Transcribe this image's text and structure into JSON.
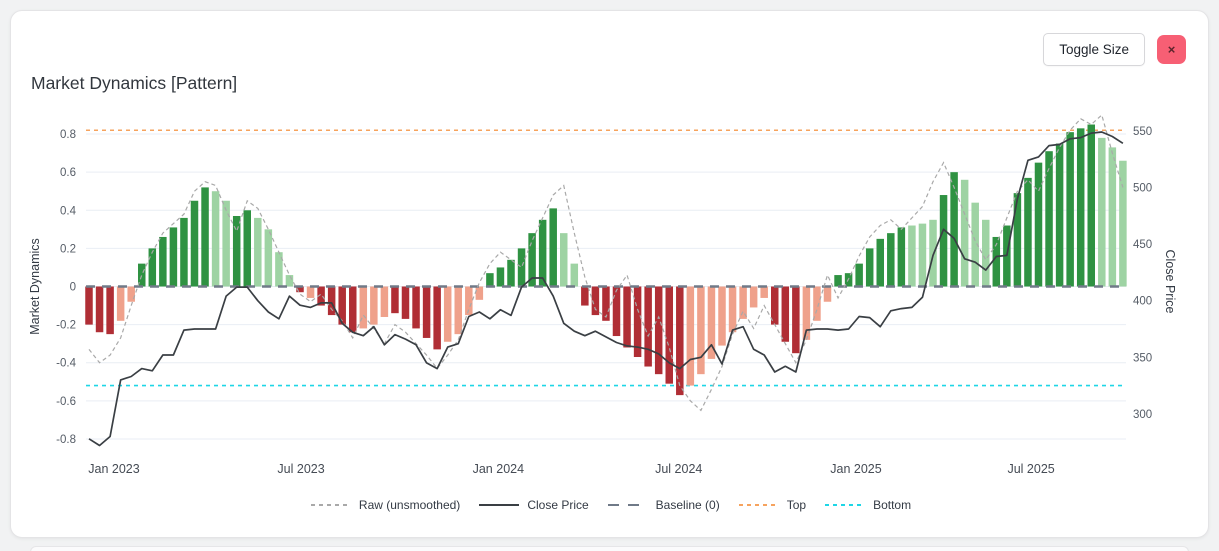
{
  "header": {
    "title": "Market Dynamics [Pattern]",
    "toggle_button": "Toggle Size",
    "close_button": "×"
  },
  "chart_data": {
    "type": "bar+line combo (pattern bars with dual-axis close price overlay)",
    "title": "Market Dynamics [Pattern]",
    "left_axis": {
      "title": "Market Dynamics",
      "ticks": [
        "0.8",
        "0.6",
        "0.4",
        "0.2",
        "0",
        "-0.2",
        "-0.4",
        "-0.6",
        "-0.8"
      ],
      "tick_values": [
        0.8,
        0.6,
        0.4,
        0.2,
        0,
        -0.2,
        -0.4,
        -0.6,
        -0.8
      ],
      "range": [
        -0.9,
        0.9
      ],
      "grid": true
    },
    "right_axis": {
      "title": "Close Price",
      "ticks": [
        "550",
        "500",
        "450",
        "400",
        "350",
        "300"
      ],
      "tick_values": [
        550,
        500,
        450,
        400,
        350,
        300
      ],
      "range": [
        261,
        564
      ]
    },
    "x_ticks": [
      {
        "label": "Jan 2023",
        "i": 2.37
      },
      {
        "label": "Jul 2023",
        "i": 20.1
      },
      {
        "label": "Jan 2024",
        "i": 38.8
      },
      {
        "label": "Jul 2024",
        "i": 55.9
      },
      {
        "label": "Jan 2025",
        "i": 72.7
      },
      {
        "label": "Jul 2025",
        "i": 89.3
      }
    ],
    "thresholds": {
      "top": 0.82,
      "bottom": -0.52
    },
    "legend": [
      {
        "label": "Raw (unsmoothed)",
        "style": "dashed",
        "color": "#a9a9a9"
      },
      {
        "label": "Close Price",
        "style": "solid",
        "color": "#3a3f44"
      },
      {
        "label": "Baseline (0)",
        "style": "longdash",
        "color": "#707a88"
      },
      {
        "label": "Top",
        "style": "dashed",
        "color": "#f6a35e"
      },
      {
        "label": "Bottom",
        "style": "dashed",
        "color": "#1ed6e6"
      }
    ],
    "colors": {
      "bar_pos_strong": "#2f9242",
      "bar_pos_soft": "#9ed3a3",
      "bar_neg_strong": "#b02e35",
      "bar_neg_soft": "#efa18b",
      "close_line": "#3a3f44",
      "raw_line": "#a9a9a9",
      "baseline": "#707a88",
      "top_line": "#f6a35e",
      "bottom_line": "#1ed6e6",
      "grid": "#e9eef4",
      "tick_text": "#555c66",
      "axis_title": "#333a44"
    },
    "pattern": [
      -0.2,
      -0.24,
      -0.25,
      -0.18,
      -0.08,
      0.12,
      0.2,
      0.26,
      0.31,
      0.36,
      0.45,
      0.52,
      0.5,
      0.45,
      0.37,
      0.4,
      0.36,
      0.3,
      0.18,
      0.06,
      -0.03,
      -0.06,
      -0.1,
      -0.15,
      -0.2,
      -0.24,
      -0.22,
      -0.2,
      -0.16,
      -0.14,
      -0.17,
      -0.22,
      -0.27,
      -0.33,
      -0.29,
      -0.25,
      -0.15,
      -0.07,
      0.07,
      0.1,
      0.14,
      0.2,
      0.28,
      0.35,
      0.41,
      0.28,
      0.12,
      -0.1,
      -0.15,
      -0.18,
      -0.26,
      -0.32,
      -0.37,
      -0.42,
      -0.46,
      -0.51,
      -0.57,
      -0.52,
      -0.46,
      -0.38,
      -0.31,
      -0.24,
      -0.17,
      -0.11,
      -0.06,
      -0.2,
      -0.29,
      -0.35,
      -0.28,
      -0.18,
      -0.08,
      0.06,
      0.07,
      0.12,
      0.2,
      0.25,
      0.28,
      0.31,
      0.32,
      0.33,
      0.35,
      0.48,
      0.6,
      0.56,
      0.44,
      0.35,
      0.26,
      0.32,
      0.49,
      0.57,
      0.65,
      0.71,
      0.75,
      0.81,
      0.83,
      0.85,
      0.78,
      0.73,
      0.66
    ],
    "soft": [
      0,
      0,
      0,
      1,
      1,
      0,
      0,
      0,
      0,
      0,
      0,
      0,
      1,
      1,
      0,
      0,
      1,
      1,
      1,
      1,
      0,
      1,
      0,
      0,
      0,
      0,
      1,
      1,
      1,
      0,
      0,
      0,
      0,
      0,
      1,
      1,
      1,
      1,
      0,
      0,
      0,
      0,
      0,
      0,
      0,
      1,
      1,
      0,
      0,
      0,
      0,
      0,
      0,
      0,
      0,
      0,
      0,
      1,
      1,
      1,
      1,
      1,
      1,
      1,
      1,
      0,
      0,
      0,
      1,
      1,
      1,
      0,
      0,
      0,
      0,
      0,
      0,
      0,
      1,
      1,
      1,
      0,
      0,
      1,
      1,
      1,
      0,
      0,
      0,
      0,
      0,
      0,
      0,
      0,
      0,
      0,
      1,
      1,
      1
    ],
    "close": [
      278,
      272,
      280,
      330,
      333,
      340,
      338,
      352,
      352,
      374,
      375,
      375,
      375,
      404,
      412,
      412,
      400,
      390,
      384,
      404,
      396,
      394,
      398,
      398,
      380,
      372,
      369,
      377,
      361,
      370,
      366,
      361,
      345,
      340,
      359,
      362,
      386,
      390,
      384,
      392,
      387,
      412,
      420,
      420,
      404,
      380,
      373,
      369,
      373,
      368,
      363,
      360,
      359,
      357,
      353,
      345,
      340,
      348,
      350,
      361,
      344,
      374,
      377,
      357,
      352,
      337,
      342,
      337,
      374,
      375,
      375,
      374,
      375,
      386,
      385,
      377,
      391,
      393,
      394,
      403,
      440,
      463,
      455,
      437,
      434,
      427,
      439,
      440,
      490,
      524,
      527,
      537,
      538,
      543,
      544,
      548,
      549,
      545,
      539
    ],
    "raw": [
      -0.33,
      -0.4,
      -0.36,
      -0.27,
      -0.1,
      0.06,
      0.18,
      0.28,
      0.33,
      0.38,
      0.5,
      0.55,
      0.53,
      0.4,
      0.29,
      0.45,
      0.41,
      0.3,
      0.18,
      0.06,
      -0.04,
      -0.08,
      -0.04,
      -0.12,
      -0.18,
      -0.27,
      -0.15,
      -0.22,
      -0.3,
      -0.2,
      -0.24,
      -0.3,
      -0.36,
      -0.43,
      -0.36,
      -0.28,
      -0.12,
      0.02,
      0.12,
      0.18,
      0.14,
      0.1,
      0.24,
      0.36,
      0.48,
      0.53,
      0.28,
      0.05,
      -0.12,
      -0.16,
      -0.02,
      0.06,
      -0.12,
      -0.26,
      -0.16,
      -0.32,
      -0.52,
      -0.6,
      -0.65,
      -0.54,
      -0.42,
      -0.25,
      -0.13,
      -0.22,
      -0.1,
      -0.2,
      -0.3,
      -0.4,
      -0.28,
      -0.12,
      0.06,
      -0.06,
      0.04,
      0.16,
      0.26,
      0.32,
      0.35,
      0.3,
      0.36,
      0.42,
      0.55,
      0.65,
      0.52,
      0.38,
      0.24,
      0.14,
      0.22,
      0.36,
      0.5,
      0.56,
      0.5,
      0.62,
      0.73,
      0.82,
      0.88,
      0.85,
      0.9,
      0.7,
      0.52
    ]
  }
}
